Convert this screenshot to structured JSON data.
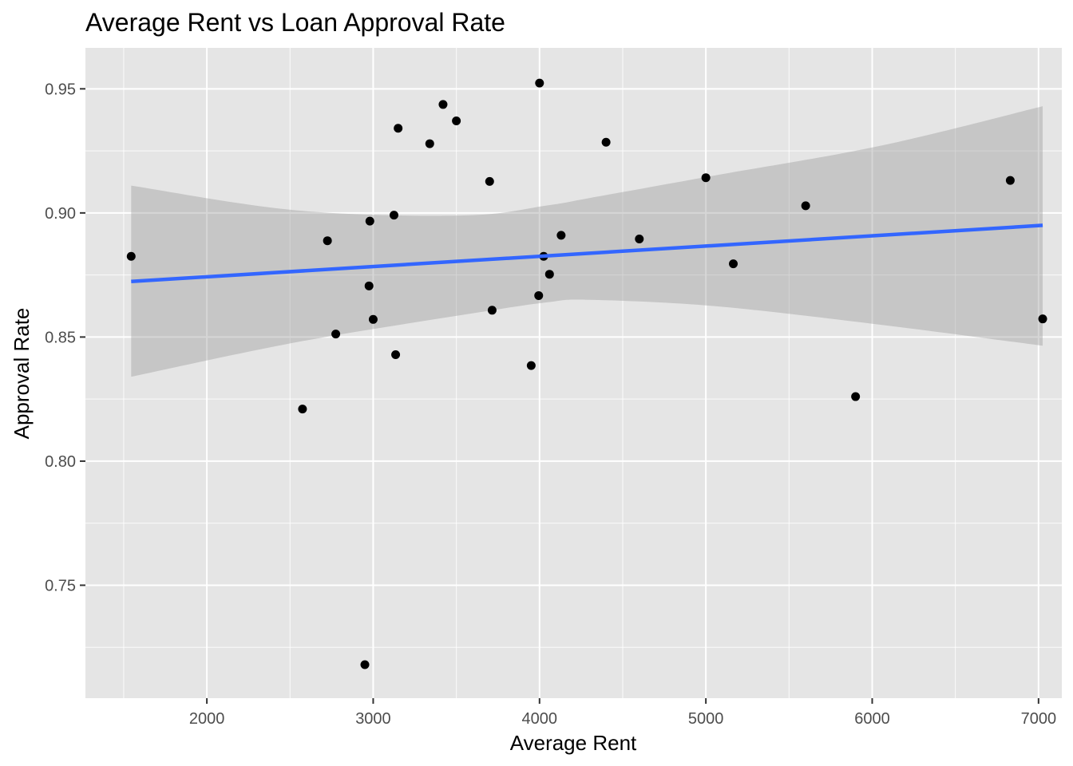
{
  "chart_data": {
    "type": "scatter",
    "title": "Average Rent vs Loan Approval Rate",
    "xlabel": "Average Rent",
    "ylabel": "Approval Rate",
    "xlim": [
      1270,
      7140
    ],
    "ylim": [
      0.7045,
      0.9665
    ],
    "x_ticks": [
      2000,
      3000,
      4000,
      5000,
      6000,
      7000
    ],
    "x_tick_labels": [
      "2000",
      "3000",
      "4000",
      "5000",
      "6000",
      "7000"
    ],
    "y_ticks": [
      0.75,
      0.8,
      0.85,
      0.9,
      0.95
    ],
    "y_tick_labels": [
      "0.75",
      "0.80",
      "0.85",
      "0.90",
      "0.95"
    ],
    "grid": true,
    "legend": "none",
    "points": [
      {
        "x": 1545,
        "y": 0.8825
      },
      {
        "x": 2575,
        "y": 0.821
      },
      {
        "x": 2725,
        "y": 0.8888
      },
      {
        "x": 2775,
        "y": 0.8512
      },
      {
        "x": 2950,
        "y": 0.718
      },
      {
        "x": 2975,
        "y": 0.8706
      },
      {
        "x": 2980,
        "y": 0.8967
      },
      {
        "x": 3000,
        "y": 0.8571
      },
      {
        "x": 3125,
        "y": 0.8991
      },
      {
        "x": 3135,
        "y": 0.8429
      },
      {
        "x": 3150,
        "y": 0.9341
      },
      {
        "x": 3340,
        "y": 0.9279
      },
      {
        "x": 3420,
        "y": 0.9437
      },
      {
        "x": 3500,
        "y": 0.9371
      },
      {
        "x": 3700,
        "y": 0.9127
      },
      {
        "x": 3715,
        "y": 0.8608
      },
      {
        "x": 3950,
        "y": 0.8385
      },
      {
        "x": 3995,
        "y": 0.8667
      },
      {
        "x": 4000,
        "y": 0.9523
      },
      {
        "x": 4025,
        "y": 0.8825
      },
      {
        "x": 4060,
        "y": 0.8753
      },
      {
        "x": 4130,
        "y": 0.891
      },
      {
        "x": 4400,
        "y": 0.9285
      },
      {
        "x": 4600,
        "y": 0.8895
      },
      {
        "x": 5000,
        "y": 0.9142
      },
      {
        "x": 5165,
        "y": 0.8795
      },
      {
        "x": 5600,
        "y": 0.9029
      },
      {
        "x": 5900,
        "y": 0.826
      },
      {
        "x": 6830,
        "y": 0.9131
      },
      {
        "x": 7025,
        "y": 0.8573
      }
    ],
    "fit_line": {
      "x": [
        1545,
        7025
      ],
      "y": [
        0.8724,
        0.895
      ],
      "color": "#3366FF"
    },
    "confidence_band": {
      "x": [
        1545,
        2545,
        3545,
        4045,
        4300,
        5045,
        6045,
        7025
      ],
      "lower": [
        0.834,
        0.848,
        0.859,
        0.864,
        0.865,
        0.8625,
        0.855,
        0.8465
      ],
      "upper": [
        0.911,
        0.901,
        0.899,
        0.903,
        0.906,
        0.915,
        0.927,
        0.943
      ],
      "color": "#999999"
    },
    "colors": {
      "panel": "#E5E5E5",
      "grid": "#FFFFFF",
      "point": "#000000"
    }
  }
}
